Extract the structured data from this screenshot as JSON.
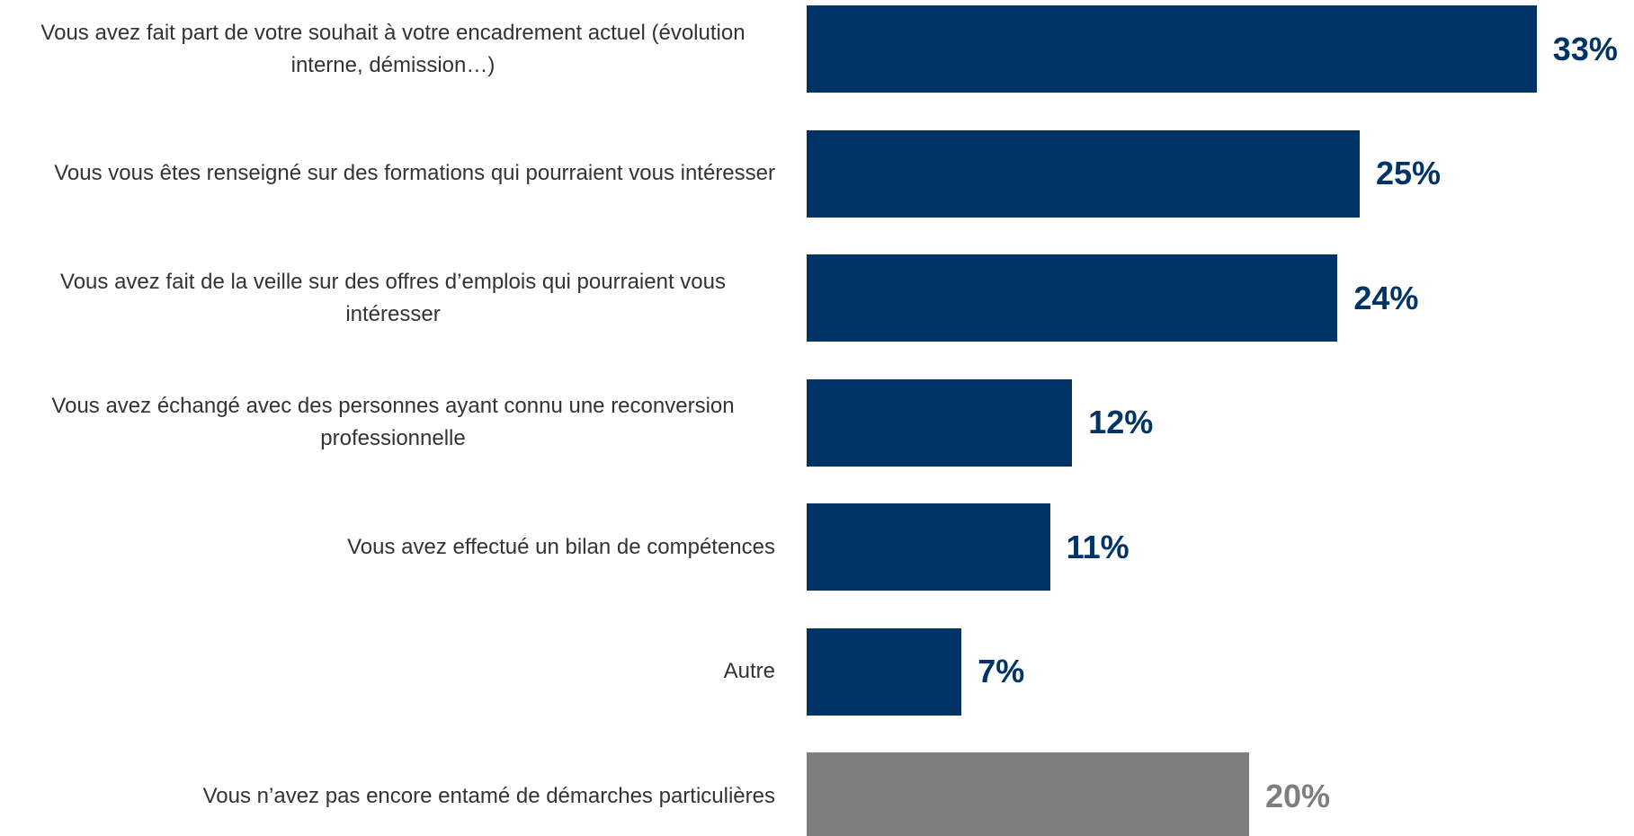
{
  "chart_data": {
    "type": "bar",
    "orientation": "horizontal",
    "categories": [
      "Vous avez fait part de votre souhait à votre encadrement actuel (évolution interne, démission…)",
      "Vous vous êtes renseigné sur des formations qui pourraient vous intéresser",
      "Vous avez fait de la veille sur des offres d’emplois qui pourraient vous intéresser",
      "Vous avez échangé avec des personnes ayant connu une reconversion professionnelle",
      "Vous avez effectué un bilan de compétences",
      "Autre",
      "Vous n’avez pas encore entamé de démarches particulières"
    ],
    "values": [
      33,
      25,
      24,
      12,
      11,
      7,
      20
    ],
    "value_labels": [
      "33%",
      "25%",
      "24%",
      "12%",
      "11%",
      "7%",
      "20%"
    ],
    "colors": [
      "#003466",
      "#003466",
      "#003466",
      "#003466",
      "#003466",
      "#003466",
      "#7f7f7f"
    ]
  }
}
